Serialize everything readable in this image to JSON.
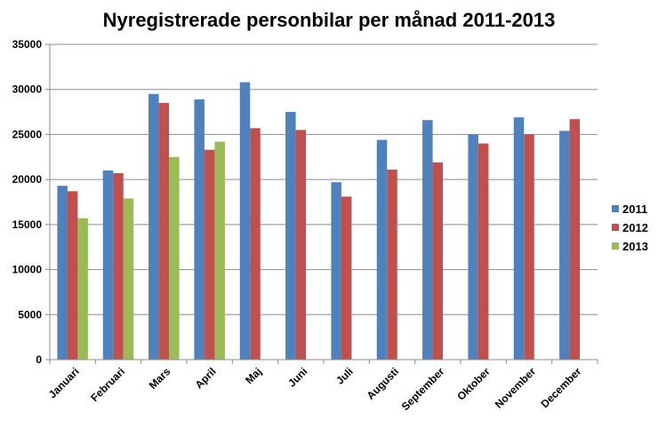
{
  "chart_data": {
    "type": "bar",
    "title": "Nyregistrerade personbilar per månad 2011-2013",
    "xlabel": "",
    "ylabel": "",
    "categories": [
      "Januari",
      "Februari",
      "Mars",
      "April",
      "Maj",
      "Juni",
      "Juli",
      "Augusti",
      "September",
      "Oktober",
      "November",
      "December"
    ],
    "ylim": [
      0,
      35000
    ],
    "yticks": [
      0,
      5000,
      10000,
      15000,
      20000,
      25000,
      30000,
      35000
    ],
    "grid": true,
    "legend_position": "right",
    "series": [
      {
        "name": "2011",
        "color": "#4F81BD",
        "values": [
          19300,
          21000,
          29500,
          28900,
          30800,
          27500,
          19700,
          24400,
          26600,
          25000,
          26900,
          25400
        ]
      },
      {
        "name": "2012",
        "color": "#C0504D",
        "values": [
          18700,
          20700,
          28500,
          23300,
          25700,
          25500,
          18100,
          21100,
          21900,
          24000,
          25000,
          26700
        ]
      },
      {
        "name": "2013",
        "color": "#9BBB59",
        "values": [
          15700,
          17900,
          22500,
          24200,
          null,
          null,
          null,
          null,
          null,
          null,
          null,
          null
        ]
      }
    ]
  }
}
